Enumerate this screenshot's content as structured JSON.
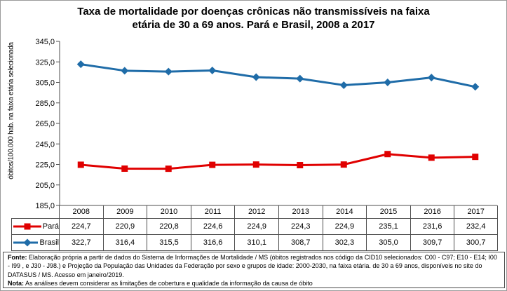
{
  "title": {
    "line1": "Taxa de mortalidade por doenças crônicas não transmissíveis na faixa",
    "line2": "etária de 30 a 69 anos. Pará e Brasil, 2008 a 2017"
  },
  "y_axis": {
    "label": "óbitos/100.000 hab. na faixa etária selecionada",
    "tick_labels": [
      "345,0",
      "325,0",
      "305,0",
      "285,0",
      "265,0",
      "245,0",
      "225,0",
      "205,0",
      "185,0"
    ],
    "max": 345,
    "min": 185,
    "step": 20
  },
  "chart_data": {
    "type": "line",
    "title": "Taxa de mortalidade por doenças crônicas não transmissíveis na faixa etária de 30 a 69 anos. Pará e Brasil, 2008 a 2017",
    "xlabel": "",
    "ylabel": "óbitos/100.000 hab. na faixa etária selecionada",
    "ylim": [
      185,
      345
    ],
    "grid": false,
    "legend_position": "data-table-left",
    "categories": [
      "2008",
      "2009",
      "2010",
      "2011",
      "2012",
      "2013",
      "2014",
      "2015",
      "2016",
      "2017"
    ],
    "series": [
      {
        "name": "Pará",
        "color": "#e00000",
        "marker": "square",
        "values": [
          224.7,
          220.9,
          220.8,
          224.6,
          224.9,
          224.3,
          224.9,
          235.1,
          231.6,
          232.4
        ],
        "display": [
          "224,7",
          "220,9",
          "220,8",
          "224,6",
          "224,9",
          "224,3",
          "224,9",
          "235,1",
          "231,6",
          "232,4"
        ]
      },
      {
        "name": "Brasil",
        "color": "#1f6ca8",
        "marker": "diamond",
        "values": [
          322.7,
          316.4,
          315.5,
          316.6,
          310.1,
          308.7,
          302.3,
          305.0,
          309.7,
          300.7
        ],
        "display": [
          "322,7",
          "316,4",
          "315,5",
          "316,6",
          "310,1",
          "308,7",
          "302,3",
          "305,0",
          "309,7",
          "300,7"
        ]
      }
    ]
  },
  "footnote": {
    "fonte_label": "Fonte:",
    "fonte_text": " Elaboração própria a partir de dados do Sistema de Informações de Mortalidade / MS (óbitos registrados nos código da CID10 selecionados: C00 - C97; E10 - E14; I00 - I99 , e J30 - J98.) e Projeção da População das Unidades da Federação por sexo e grupos de idade: 2000-2030, na faixa etária. de 30 a 69 anos, disponíveis no site do DATASUS / MS.  Acesso em janeiro/2019.",
    "nota_label": "Nota:",
    "nota_text": " As análises devem considerar as limitações de cobertura e qualidade da informação da causa de óbito"
  },
  "colors": {
    "axis": "#4d4d4d",
    "table_border": "#4d4d4d",
    "outer_border": "#9b9b9b",
    "para_red": "#e00000",
    "brasil_blue": "#1f6ca8"
  }
}
